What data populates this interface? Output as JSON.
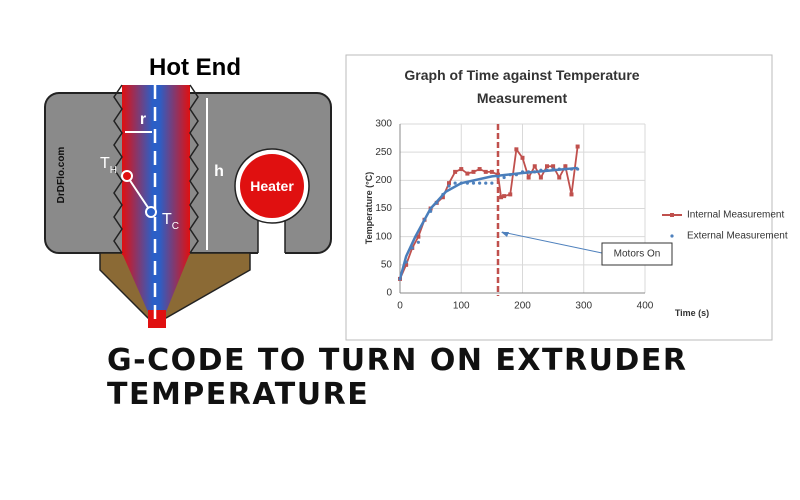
{
  "diagram": {
    "title": "Hot End",
    "watermark": "DrDFlo.com",
    "heater": "Heater",
    "radius_label": "r",
    "height_label": "h",
    "hot_point": {
      "label": "T",
      "subscript": "H"
    },
    "cold_point": {
      "label": "T",
      "subscript": "C"
    }
  },
  "chart_data": {
    "type": "line",
    "title": [
      "Graph of Time against Temperature",
      "Measurement"
    ],
    "x_label": "Time (s)",
    "y_label": "Temperature (°C)",
    "xlim": [
      0,
      400
    ],
    "xticks": [
      0,
      100,
      200,
      300,
      400
    ],
    "ylim": [
      0,
      300
    ],
    "yticks": [
      0,
      50,
      100,
      150,
      200,
      250,
      300
    ],
    "grid": true,
    "legend": "right",
    "series": [
      {
        "name": "Internal Measurement",
        "color": "#c0504d",
        "style": "line-markers",
        "x": [
          0,
          10,
          20,
          30,
          40,
          50,
          60,
          70,
          80,
          90,
          100,
          110,
          120,
          130,
          140,
          150,
          160,
          165,
          170,
          180,
          190,
          200,
          210,
          220,
          230,
          240,
          250,
          260,
          270,
          280,
          290
        ],
        "values": [
          25,
          50,
          80,
          100,
          130,
          150,
          160,
          170,
          195,
          215,
          220,
          212,
          215,
          220,
          215,
          215,
          210,
          170,
          172,
          175,
          255,
          240,
          205,
          225,
          205,
          225,
          225,
          205,
          225,
          175,
          260
        ]
      },
      {
        "name": "External Measurement",
        "color": "#4f81bd",
        "style": "markers",
        "x": [
          0,
          10,
          20,
          30,
          40,
          50,
          60,
          70,
          80,
          90,
          100,
          110,
          120,
          130,
          140,
          150,
          160,
          170,
          180,
          190,
          200,
          210,
          220,
          230,
          240,
          250,
          260,
          270,
          280,
          290
        ],
        "values": [
          25,
          55,
          80,
          90,
          130,
          145,
          160,
          175,
          190,
          195,
          195,
          195,
          195,
          195,
          195,
          195,
          205,
          205,
          210,
          210,
          215,
          215,
          215,
          218,
          218,
          220,
          220,
          220,
          220,
          220
        ]
      },
      {
        "color": "#4a7ebb",
        "style": "line",
        "x": [
          0,
          10,
          25,
          50,
          75,
          100,
          150,
          200,
          250,
          290
        ],
        "values": [
          25,
          65,
          100,
          150,
          180,
          195,
          207,
          213,
          218,
          222
        ]
      }
    ],
    "annotation": {
      "text": "Motors On",
      "x": 160
    }
  },
  "headline": [
    "G-CODE TO TURN ON EXTRUDER",
    "TEMPERATURE"
  ]
}
